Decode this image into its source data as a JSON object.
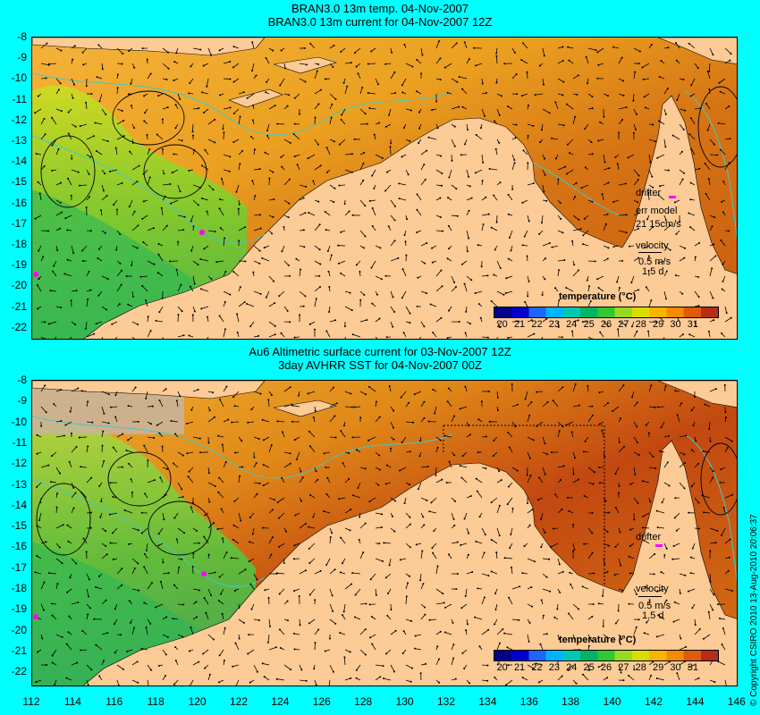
{
  "top_panel": {
    "title_line1": "BRAN3.0 13m temp. 04-Nov-2007",
    "title_line2": "BRAN3.0 13m current for 04-Nov-2007 12Z",
    "legend": {
      "drifter_label": "drifter",
      "err_model_label": "err model",
      "err_model_value": "21 15cm/s",
      "velocity_label": "velocity",
      "velocity_value": "0.5 m/s",
      "duration": "1.5 d",
      "colorbar_title": "temperature (°C)"
    }
  },
  "bottom_panel": {
    "title_line1": "Au6 Altimetric surface current for 03-Nov-2007 12Z",
    "title_line2": "3day AVHRR SST for 04-Nov-2007 00Z",
    "legend": {
      "drifter_label": "drifter",
      "velocity_label": "velocity",
      "velocity_value": "0.5 m/s",
      "duration": "1.5 d",
      "colorbar_title": "temperature (°C)"
    }
  },
  "latitude_labels": [
    "-8",
    "-9",
    "-10",
    "-11",
    "-12",
    "-13",
    "-14",
    "-15",
    "-16",
    "-17",
    "-18",
    "-19",
    "-20",
    "-21",
    "-22"
  ],
  "longitude_labels": [
    "112",
    "114",
    "116",
    "118",
    "120",
    "122",
    "124",
    "126",
    "128",
    "130",
    "132",
    "134",
    "136",
    "138",
    "140",
    "142",
    "144",
    "146"
  ],
  "colorbar_labels": [
    "20",
    "21",
    "22",
    "23",
    "24",
    "25",
    "26",
    "27",
    "28",
    "29",
    "30",
    "31"
  ],
  "copyright": "© Copyright CSIRO 2010   13-Aug-2010 20:06:37",
  "colors": {
    "background": "#00ffff",
    "land": "#fdcb96",
    "contour": "#44c8c8",
    "drifter": "#ff00ff"
  }
}
